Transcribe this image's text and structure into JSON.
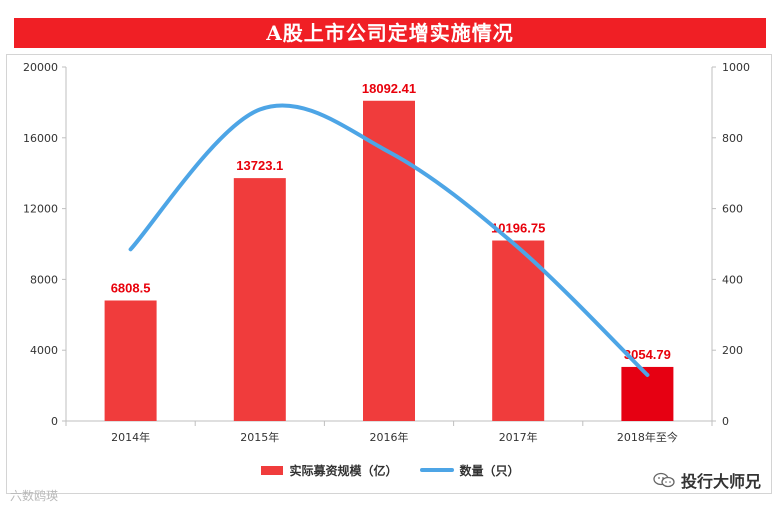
{
  "header": {
    "title": "A股上市公司定增实施情况"
  },
  "chart_data": {
    "type": "bar",
    "categories": [
      "2014年",
      "2015年",
      "2016年",
      "2017年",
      "2018年至今"
    ],
    "series": [
      {
        "name": "实际募资规模（亿）",
        "kind": "bar",
        "axis": "left",
        "values": [
          6808.5,
          13723.1,
          18092.41,
          10196.75,
          3054.79
        ],
        "labels": [
          "6808.5",
          "13723.1",
          "18092.41",
          "10196.75",
          "3054.79"
        ],
        "highlight_index": 4
      },
      {
        "name": "数量（只）",
        "kind": "line",
        "axis": "right",
        "values": [
          485,
          880,
          760,
          490,
          130
        ]
      }
    ],
    "y_left": {
      "ylim": [
        0,
        20000
      ],
      "ticks": [
        "0",
        "4000",
        "8000",
        "12000",
        "16000",
        "20000"
      ]
    },
    "y_right": {
      "ylim": [
        0,
        1000
      ],
      "ticks": [
        "0",
        "200",
        "400",
        "600",
        "800",
        "1000"
      ]
    },
    "grid": false,
    "legend_position": "bottom",
    "colors": {
      "bar": "#f03c3c",
      "bar_highlight": "#e60012",
      "line": "#4da5e6",
      "label": "#e8000b"
    }
  },
  "footer": {
    "watermark_left": "六数鸥瑛",
    "watermark_right": "投行大师兄",
    "watermark_right_icon": "wechat-icon"
  }
}
